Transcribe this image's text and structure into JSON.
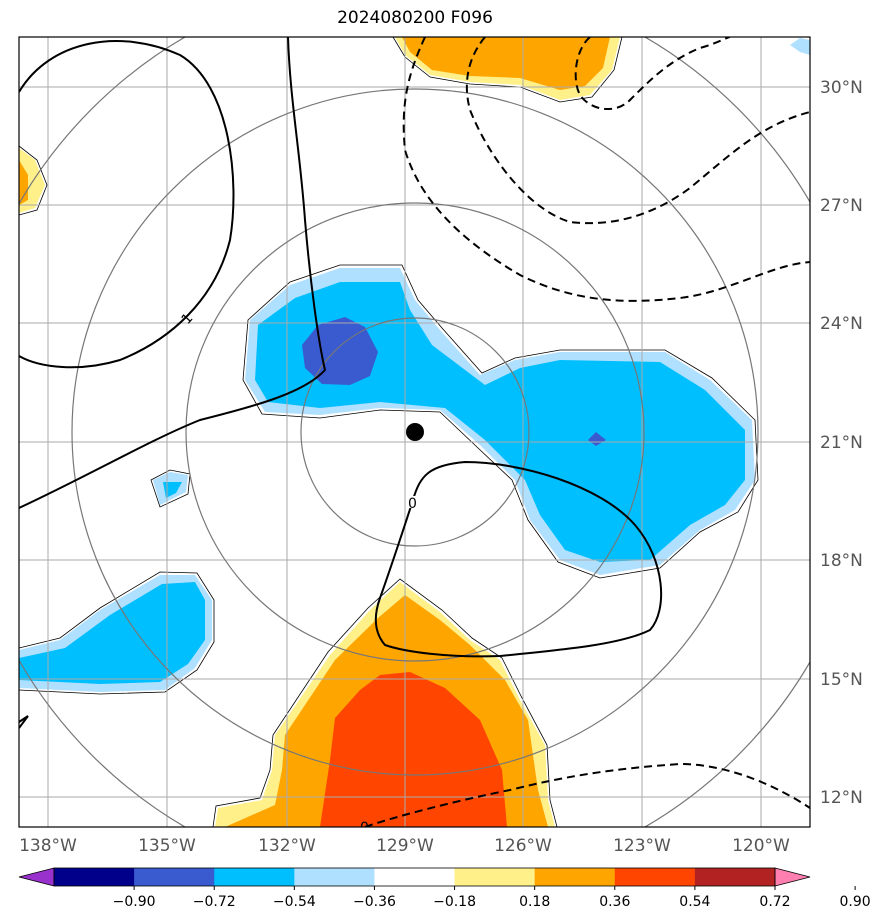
{
  "title": "2024080200 F096",
  "map": {
    "lon_ticks": [
      "138°W",
      "135°W",
      "132°W",
      "129°W",
      "126°W",
      "123°W",
      "120°W"
    ],
    "lat_ticks": [
      "30°N",
      "27°N",
      "24°N",
      "21°N",
      "18°N",
      "15°N",
      "12°N"
    ],
    "contour_labels": [
      "1",
      "0",
      "0"
    ],
    "center_marker": {
      "lon": -129.25,
      "lat": 21.25
    }
  },
  "colorbar": {
    "levels": [
      "−0.90",
      "−0.72",
      "−0.54",
      "−0.36",
      "−0.18",
      "0.18",
      "0.36",
      "0.54",
      "0.72",
      "0.90"
    ],
    "colors": [
      "#9932cc",
      "#00008b",
      "#3a5bd0",
      "#00bfff",
      "#b0e0ff",
      "#ffffff",
      "#fff08a",
      "#ffa500",
      "#ff4500",
      "#b22222",
      "#ff80b0"
    ]
  }
}
